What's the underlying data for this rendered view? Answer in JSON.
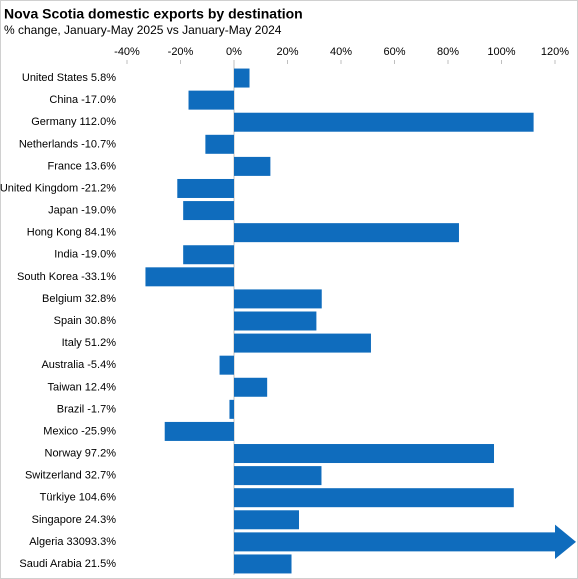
{
  "chart_data": {
    "type": "bar",
    "orientation": "horizontal",
    "title": "Nova Scotia domestic exports by destination",
    "subtitle": "% change, January-May 2025 vs January-May 2024",
    "categories": [
      "United States",
      "China",
      "Germany",
      "Netherlands",
      "France",
      "United Kingdom",
      "Japan",
      "Hong Kong",
      "India",
      "South Korea",
      "Belgium",
      "Spain",
      "Italy",
      "Australia",
      "Taiwan",
      "Brazil",
      "Mexico",
      "Norway",
      "Switzerland",
      "Türkiye",
      "Singapore",
      "Algeria",
      "Saudi Arabia"
    ],
    "values": [
      5.8,
      -17.0,
      112.0,
      -10.7,
      13.6,
      -21.2,
      -19.0,
      84.1,
      -19.0,
      -33.1,
      32.8,
      30.8,
      51.2,
      -5.4,
      12.4,
      -1.7,
      -25.9,
      97.2,
      32.7,
      104.6,
      24.3,
      33093.3,
      21.5
    ],
    "value_labels": [
      "5.8%",
      "-17.0%",
      "112.0%",
      "-10.7%",
      "13.6%",
      "-21.2%",
      "-19.0%",
      "84.1%",
      "-19.0%",
      "-33.1%",
      "32.8%",
      "30.8%",
      "51.2%",
      "-5.4%",
      "12.4%",
      "-1.7%",
      "-25.9%",
      "97.2%",
      "32.7%",
      "104.6%",
      "24.3%",
      "33093.3%",
      "21.5%"
    ],
    "color": "#0f6cbd",
    "xlim": [
      -40,
      120
    ],
    "xticks": [
      {
        "value": -40,
        "label": "-40%"
      },
      {
        "value": -20,
        "label": "-20%"
      },
      {
        "value": 0,
        "label": "0%"
      },
      {
        "value": 20,
        "label": "20%"
      },
      {
        "value": 40,
        "label": "40%"
      },
      {
        "value": 60,
        "label": "60%"
      },
      {
        "value": 80,
        "label": "80%"
      },
      {
        "value": 100,
        "label": "100%"
      },
      {
        "value": 120,
        "label": "120%"
      }
    ],
    "grid": false
  }
}
